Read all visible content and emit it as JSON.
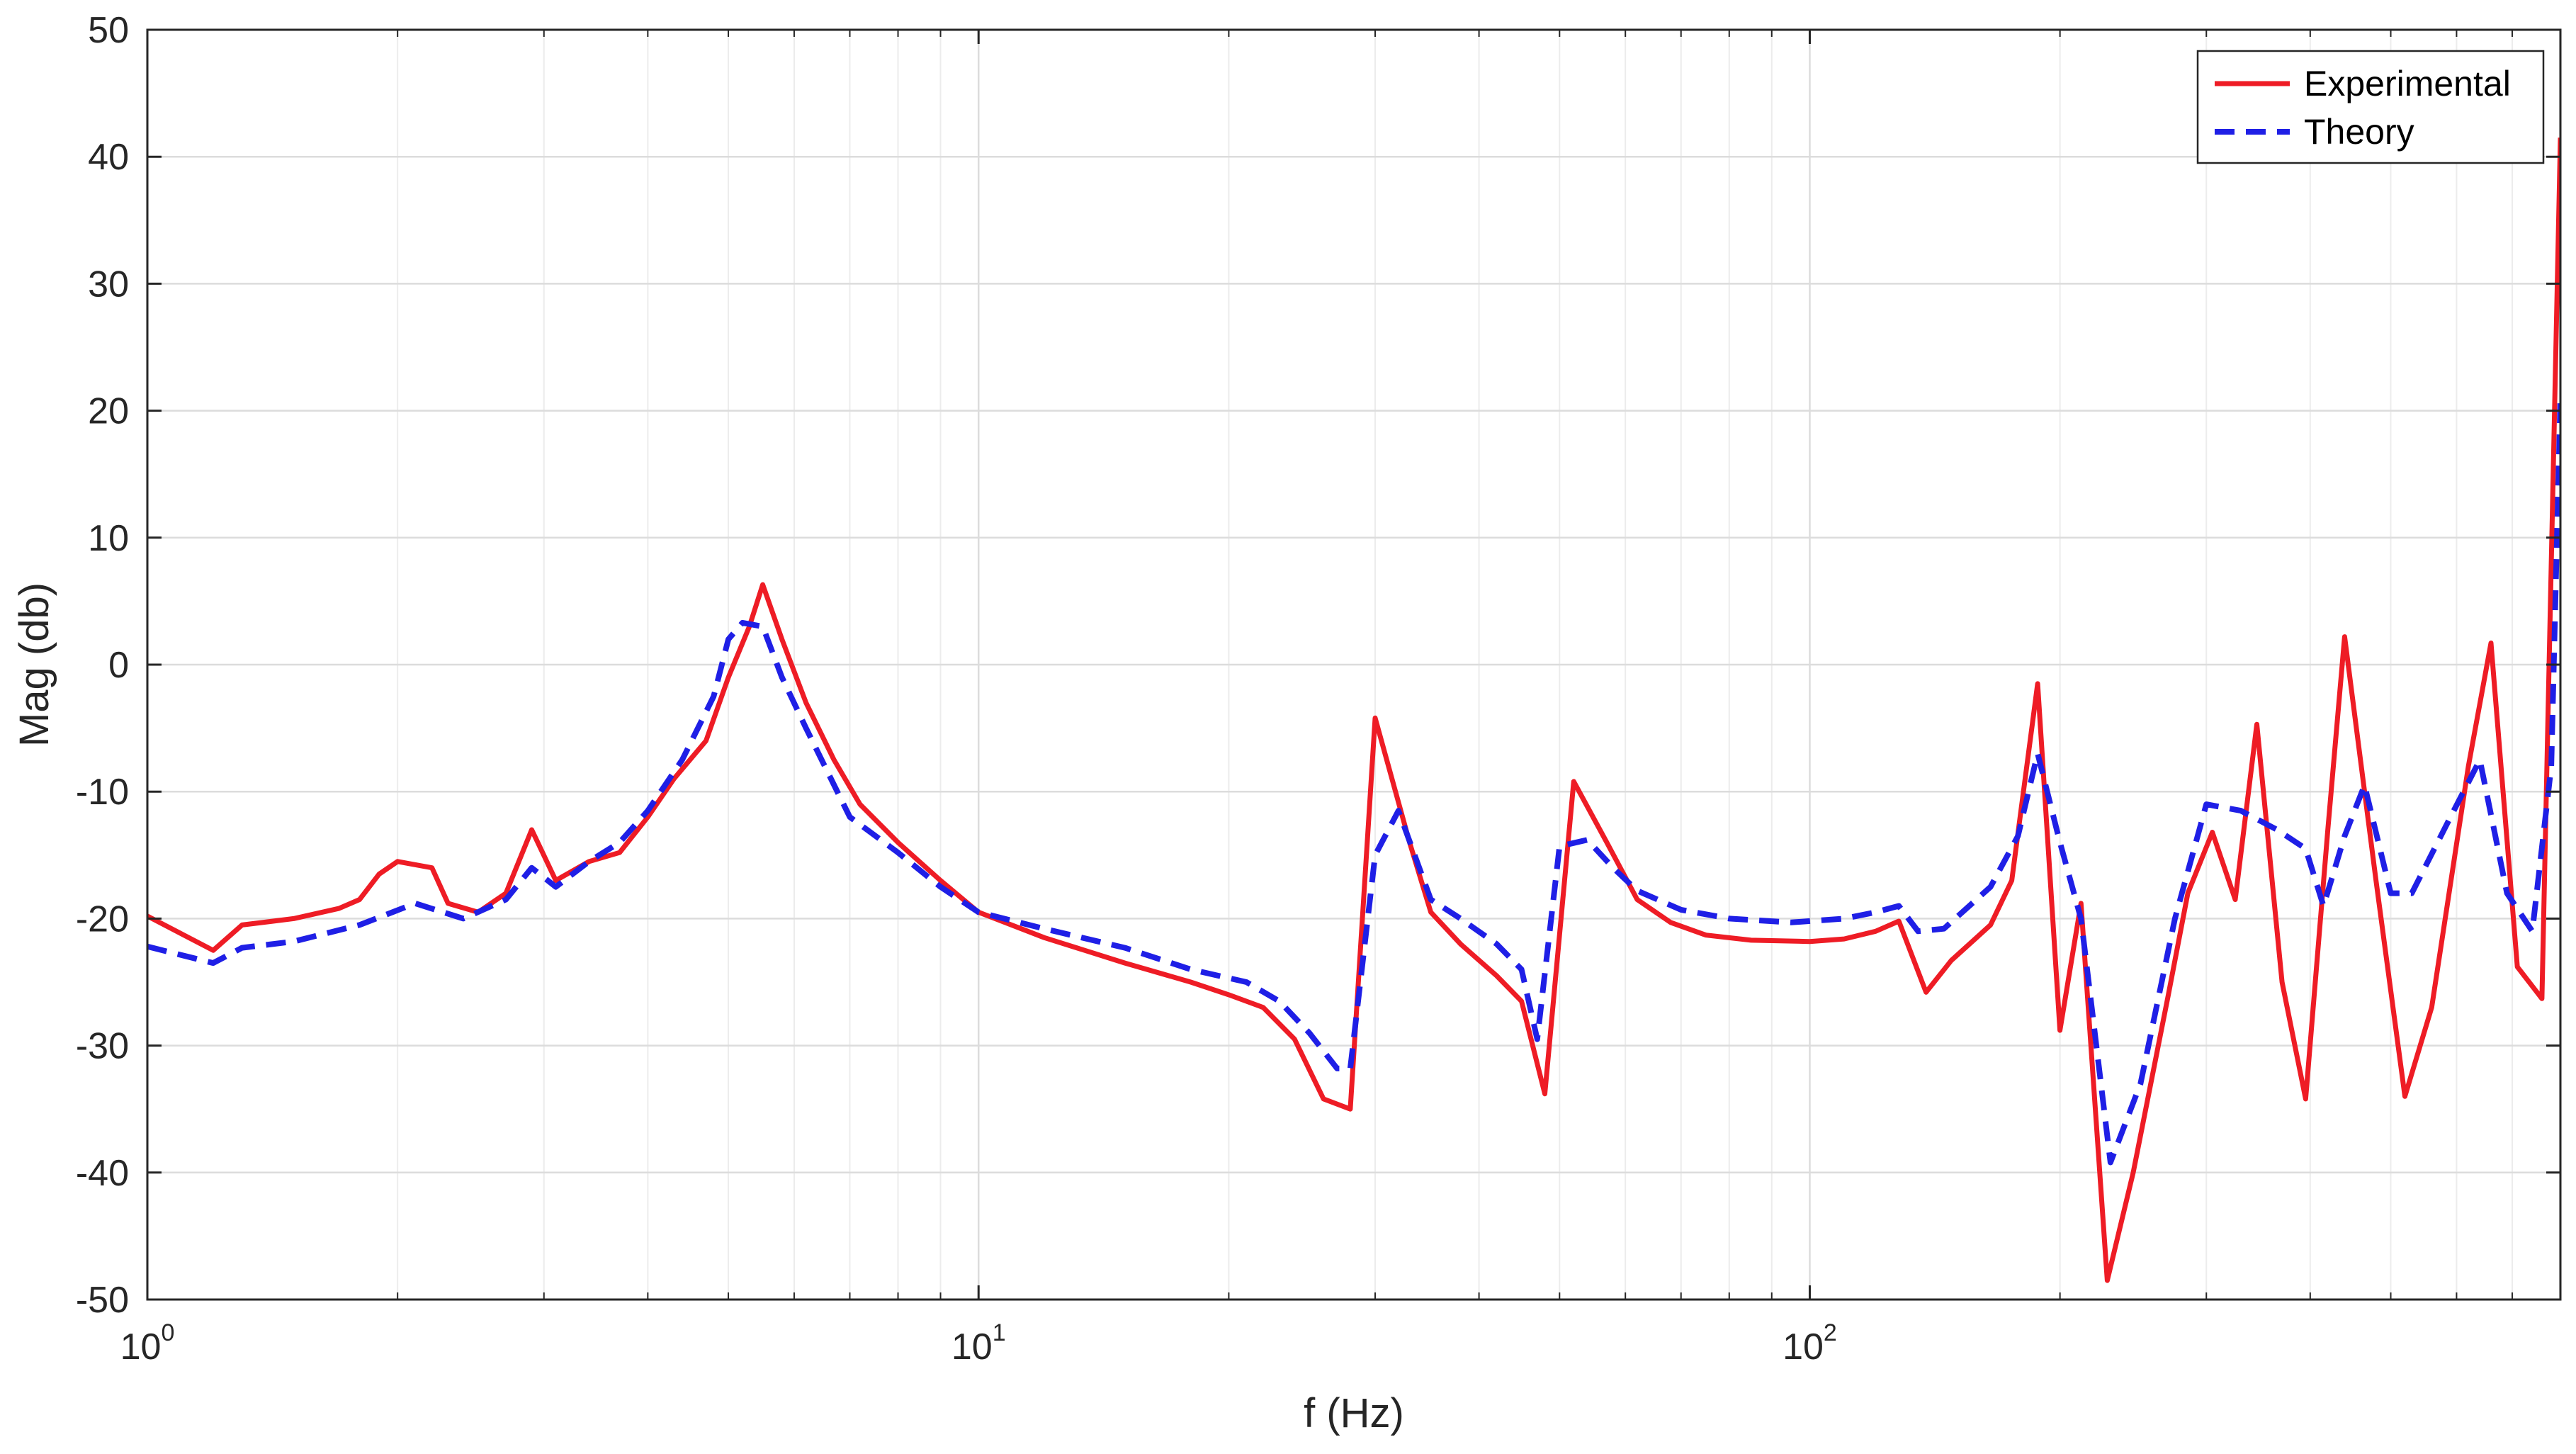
{
  "chart_data": {
    "type": "line",
    "xscale": "log",
    "xlabel": "f (Hz)",
    "ylabel": "Mag (db)",
    "xlim": [
      1,
      800
    ],
    "ylim": [
      -50,
      50
    ],
    "yticks": [
      50,
      40,
      30,
      20,
      10,
      0,
      -10,
      -20,
      -30,
      -40,
      -50
    ],
    "xticks": [
      {
        "value": 1,
        "base": "10",
        "exp": "0"
      },
      {
        "value": 10,
        "base": "10",
        "exp": "1"
      },
      {
        "value": 100,
        "base": "10",
        "exp": "2"
      }
    ],
    "grid": true,
    "legend_position": "top-right",
    "series": [
      {
        "name": "Experimental",
        "color": "#ee1c25",
        "style": "solid",
        "points": [
          [
            1.0,
            -19.8
          ],
          [
            1.2,
            -22.5
          ],
          [
            1.3,
            -20.5
          ],
          [
            1.5,
            -20.0
          ],
          [
            1.7,
            -19.2
          ],
          [
            1.8,
            -18.5
          ],
          [
            1.9,
            -16.5
          ],
          [
            2.0,
            -15.5
          ],
          [
            2.2,
            -16.0
          ],
          [
            2.3,
            -18.8
          ],
          [
            2.5,
            -19.5
          ],
          [
            2.7,
            -18.0
          ],
          [
            2.9,
            -13.0
          ],
          [
            3.1,
            -17.0
          ],
          [
            3.4,
            -15.5
          ],
          [
            3.7,
            -14.8
          ],
          [
            4.0,
            -12.0
          ],
          [
            4.3,
            -9.0
          ],
          [
            4.7,
            -6.0
          ],
          [
            5.0,
            -1.0
          ],
          [
            5.3,
            3.0
          ],
          [
            5.5,
            6.3
          ],
          [
            5.8,
            2.0
          ],
          [
            6.2,
            -3.0
          ],
          [
            6.7,
            -7.5
          ],
          [
            7.2,
            -11.0
          ],
          [
            8.0,
            -14.0
          ],
          [
            9.0,
            -17.0
          ],
          [
            10.0,
            -19.5
          ],
          [
            12.0,
            -21.5
          ],
          [
            15.0,
            -23.5
          ],
          [
            18.0,
            -25.0
          ],
          [
            20.0,
            -26.0
          ],
          [
            22.0,
            -27.0
          ],
          [
            24.0,
            -29.5
          ],
          [
            26.0,
            -34.2
          ],
          [
            28.0,
            -35.0
          ],
          [
            30.0,
            -4.2
          ],
          [
            33.0,
            -14.0
          ],
          [
            35.0,
            -19.5
          ],
          [
            38.0,
            -22.0
          ],
          [
            42.0,
            -24.5
          ],
          [
            45.0,
            -26.5
          ],
          [
            48.0,
            -33.8
          ],
          [
            52.0,
            -9.2
          ],
          [
            57.0,
            -14.0
          ],
          [
            62.0,
            -18.5
          ],
          [
            68.0,
            -20.3
          ],
          [
            75.0,
            -21.3
          ],
          [
            85.0,
            -21.7
          ],
          [
            100.0,
            -21.8
          ],
          [
            110.0,
            -21.6
          ],
          [
            120.0,
            -21.0
          ],
          [
            128.0,
            -20.2
          ],
          [
            138.0,
            -25.8
          ],
          [
            148.0,
            -23.3
          ],
          [
            165.0,
            -20.5
          ],
          [
            175.0,
            -17.0
          ],
          [
            188.0,
            -1.5
          ],
          [
            200.0,
            -28.8
          ],
          [
            212.0,
            -18.8
          ],
          [
            228.0,
            -48.5
          ],
          [
            245.0,
            -40.0
          ],
          [
            270.0,
            -26.0
          ],
          [
            285.0,
            -18.0
          ],
          [
            305.0,
            -13.2
          ],
          [
            325.0,
            -18.5
          ],
          [
            345.0,
            -4.7
          ],
          [
            370.0,
            -25.0
          ],
          [
            395.0,
            -34.2
          ],
          [
            420.0,
            -13.0
          ],
          [
            440.0,
            2.2
          ],
          [
            480.0,
            -17.0
          ],
          [
            520.0,
            -34.0
          ],
          [
            560.0,
            -27.0
          ],
          [
            620.0,
            -8.0
          ],
          [
            660.0,
            1.7
          ],
          [
            710.0,
            -23.8
          ],
          [
            760.0,
            -26.3
          ],
          [
            800.0,
            41.5
          ]
        ]
      },
      {
        "name": "Theory",
        "color": "#1f1fe6",
        "style": "dashed",
        "points": [
          [
            1.0,
            -22.2
          ],
          [
            1.2,
            -23.5
          ],
          [
            1.3,
            -22.3
          ],
          [
            1.5,
            -21.8
          ],
          [
            1.8,
            -20.5
          ],
          [
            2.1,
            -18.8
          ],
          [
            2.4,
            -20.0
          ],
          [
            2.7,
            -18.5
          ],
          [
            2.9,
            -16.0
          ],
          [
            3.1,
            -17.5
          ],
          [
            3.4,
            -15.5
          ],
          [
            3.7,
            -14.0
          ],
          [
            4.0,
            -11.5
          ],
          [
            4.4,
            -7.5
          ],
          [
            4.8,
            -2.5
          ],
          [
            5.0,
            2.0
          ],
          [
            5.2,
            3.3
          ],
          [
            5.5,
            3.0
          ],
          [
            5.8,
            -1.0
          ],
          [
            6.2,
            -5.0
          ],
          [
            7.0,
            -12.0
          ],
          [
            8.0,
            -14.8
          ],
          [
            9.0,
            -17.5
          ],
          [
            10.0,
            -19.5
          ],
          [
            12.0,
            -20.8
          ],
          [
            15.0,
            -22.3
          ],
          [
            18.0,
            -24.0
          ],
          [
            21.0,
            -25.0
          ],
          [
            23.0,
            -26.5
          ],
          [
            25.0,
            -29.0
          ],
          [
            27.0,
            -31.8
          ],
          [
            28.0,
            -31.8
          ],
          [
            30.0,
            -15.0
          ],
          [
            32.0,
            -11.5
          ],
          [
            35.0,
            -18.5
          ],
          [
            38.0,
            -20.0
          ],
          [
            42.0,
            -22.0
          ],
          [
            45.0,
            -24.0
          ],
          [
            47.0,
            -29.5
          ],
          [
            50.0,
            -14.3
          ],
          [
            54.0,
            -13.8
          ],
          [
            58.0,
            -16.0
          ],
          [
            62.0,
            -17.8
          ],
          [
            70.0,
            -19.3
          ],
          [
            80.0,
            -20.0
          ],
          [
            95.0,
            -20.3
          ],
          [
            110.0,
            -20.0
          ],
          [
            120.0,
            -19.5
          ],
          [
            128.0,
            -19.0
          ],
          [
            135.0,
            -21.0
          ],
          [
            145.0,
            -20.8
          ],
          [
            165.0,
            -17.5
          ],
          [
            178.0,
            -13.5
          ],
          [
            188.0,
            -7.0
          ],
          [
            200.0,
            -14.0
          ],
          [
            212.0,
            -20.0
          ],
          [
            230.0,
            -39.2
          ],
          [
            250.0,
            -33.0
          ],
          [
            275.0,
            -20.0
          ],
          [
            300.0,
            -11.0
          ],
          [
            330.0,
            -11.5
          ],
          [
            365.0,
            -13.0
          ],
          [
            395.0,
            -14.5
          ],
          [
            415.0,
            -19.0
          ],
          [
            440.0,
            -13.5
          ],
          [
            465.0,
            -9.5
          ],
          [
            500.0,
            -18.0
          ],
          [
            530.0,
            -18.0
          ],
          [
            590.0,
            -12.0
          ],
          [
            640.0,
            -7.5
          ],
          [
            690.0,
            -18.0
          ],
          [
            740.0,
            -21.0
          ],
          [
            780.0,
            -8.0
          ],
          [
            800.0,
            21.0
          ]
        ]
      }
    ]
  }
}
